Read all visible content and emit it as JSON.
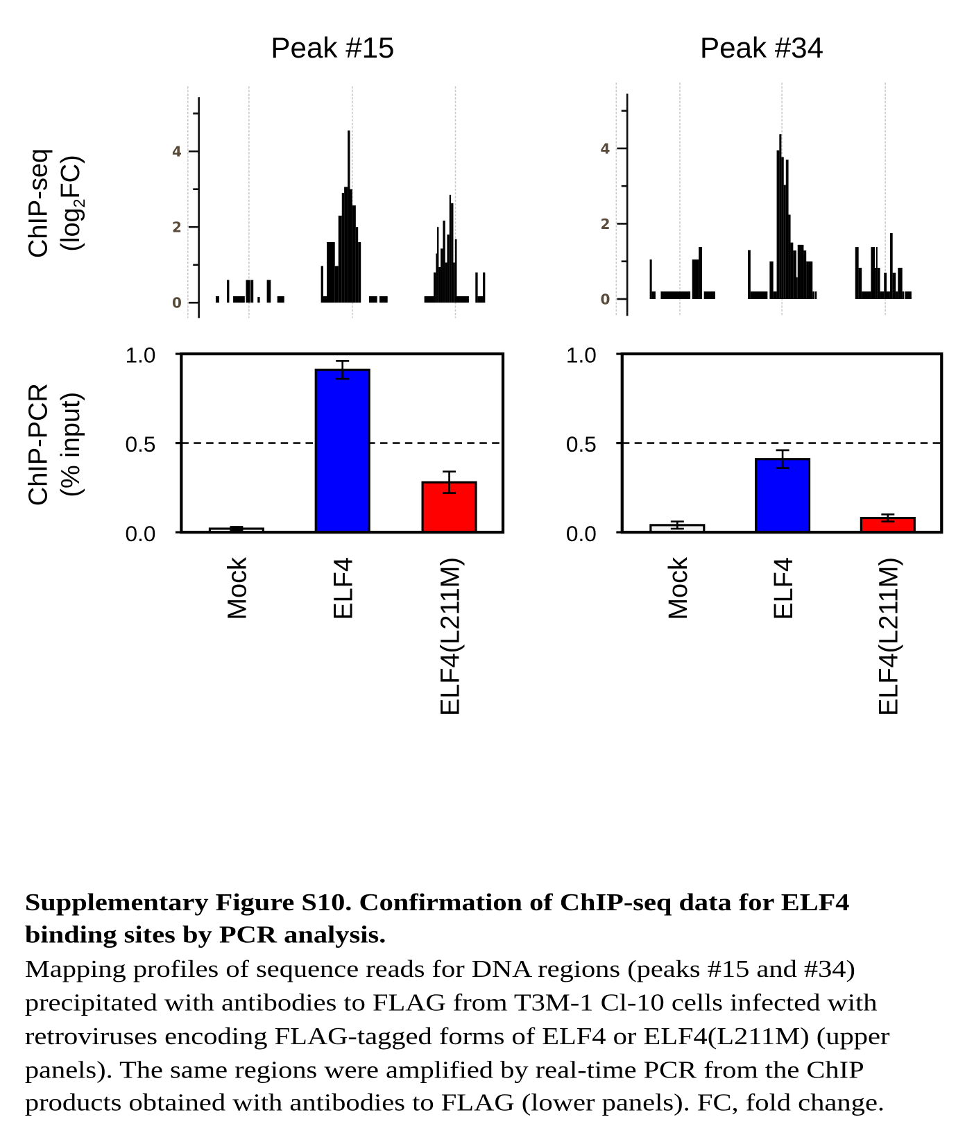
{
  "figure": {
    "panel_titles": [
      "Peak #15",
      "Peak #34"
    ],
    "ylabel_chipseq": [
      "ChIP-seq",
      "(log",
      "2",
      "FC)"
    ],
    "ylabel_chippcr": [
      "ChIP-PCR",
      "(% input)"
    ],
    "caption_title_lines": [
      "Supplementary Figure S10. Confirmation of ChIP-seq data for ELF4",
      "binding sites by PCR analysis."
    ],
    "caption_body_lines": [
      "Mapping profiles of sequence reads for DNA regions (peaks #15 and #34)",
      "precipitated with antibodies to FLAG from T3M-1 Cl-10 cells infected with",
      "retroviruses encoding FLAG-tagged forms of ELF4 or ELF4(L211M) (upper",
      "panels). The same regions were amplified by real-time PCR from the ChIP",
      "products obtained with antibodies to FLAG (lower panels). FC, fold change."
    ]
  },
  "chart_data": [
    {
      "type": "bar",
      "panel": "Peak #15",
      "title": "Peak #15",
      "ylabel": "ChIP-seq (log2FC)",
      "ylim": [
        0,
        5.4
      ],
      "yticks": [
        0,
        1,
        2,
        3,
        4,
        5
      ],
      "ytick_labels": [
        "0",
        "2",
        "4"
      ],
      "bar_color": "#000000",
      "marker_positions": [
        -12,
        14.3,
        58.8,
        103.2
      ],
      "segments": [
        [
          0,
          1.5,
          0.17
        ],
        [
          4.8,
          5.8,
          0.6
        ],
        [
          7.5,
          12.5,
          0.17
        ],
        [
          13,
          14.8,
          0.6
        ],
        [
          15,
          16.2,
          0.6
        ],
        [
          18,
          19,
          0.15
        ],
        [
          22,
          23.7,
          0.6
        ],
        [
          26.5,
          29.5,
          0.17
        ],
        [
          45.3,
          46.3,
          0.97
        ],
        [
          46.3,
          47.8,
          0.17
        ],
        [
          47.8,
          51.3,
          1.6
        ],
        [
          51.3,
          52.8,
          0.97
        ],
        [
          52.8,
          54.3,
          2.3
        ],
        [
          54.3,
          55.3,
          2.9
        ],
        [
          55.3,
          56.8,
          3.06
        ],
        [
          56.8,
          57.8,
          4.55
        ],
        [
          57.8,
          58.8,
          3.0
        ],
        [
          58.8,
          60.3,
          2.57
        ],
        [
          60.3,
          61.3,
          2.0
        ],
        [
          61.3,
          62.5,
          1.6
        ],
        [
          66,
          69.5,
          0.17
        ],
        [
          70.5,
          74,
          0.17
        ],
        [
          89.8,
          93.8,
          0.17
        ],
        [
          93.8,
          94.8,
          0.8
        ],
        [
          94.8,
          95.3,
          1.3
        ],
        [
          95.3,
          96,
          2.0
        ],
        [
          96,
          96.8,
          0.94
        ],
        [
          96.8,
          97.8,
          1.43
        ],
        [
          97.8,
          98.8,
          2.17
        ],
        [
          98.8,
          99.6,
          1.06
        ],
        [
          99.6,
          100.6,
          1.8
        ],
        [
          100.6,
          101.3,
          2.85
        ],
        [
          101.3,
          102.3,
          2.63
        ],
        [
          102.3,
          103,
          1.06
        ],
        [
          103,
          103.8,
          1.68
        ],
        [
          103.8,
          109,
          0.17
        ],
        [
          111.8,
          112.8,
          0.8
        ],
        [
          112.8,
          115,
          0.17
        ],
        [
          115,
          116,
          0.8
        ]
      ]
    },
    {
      "type": "bar",
      "panel": "Peak #34",
      "title": "Peak #34",
      "ylabel": "ChIP-seq (log2FC)",
      "ylim": [
        0,
        5.4
      ],
      "yticks": [
        0,
        1,
        2,
        3,
        4,
        5
      ],
      "ytick_labels": [
        "0",
        "2",
        "4"
      ],
      "bar_color": "#000000",
      "marker_positions": [
        -12.8,
        11.5,
        50.5,
        90
      ],
      "segments": [
        [
          0,
          0.8,
          1.05
        ],
        [
          0.8,
          2.2,
          0.2
        ],
        [
          4.2,
          15.5,
          0.2
        ],
        [
          16.2,
          18.7,
          1.05
        ],
        [
          18.7,
          20,
          1.38
        ],
        [
          20.7,
          25,
          0.2
        ],
        [
          37.5,
          38.5,
          1.3
        ],
        [
          38.5,
          45,
          0.2
        ],
        [
          45.8,
          47.2,
          1.0
        ],
        [
          47.2,
          48.5,
          0.2
        ],
        [
          48.5,
          49.5,
          3.95
        ],
        [
          49.5,
          50.3,
          4.38
        ],
        [
          50.3,
          51.2,
          3.77
        ],
        [
          51.2,
          52,
          3.03
        ],
        [
          52,
          53,
          3.7
        ],
        [
          53,
          53.8,
          2.24
        ],
        [
          53.8,
          54.8,
          1.5
        ],
        [
          54.8,
          56,
          1.29
        ],
        [
          56,
          56.5,
          0.58
        ],
        [
          56.5,
          57.5,
          1.44
        ],
        [
          57.5,
          58.8,
          1.44
        ],
        [
          58.8,
          59.8,
          1.29
        ],
        [
          59.8,
          60.8,
          1.0
        ],
        [
          60.8,
          62.2,
          1.0
        ],
        [
          62.2,
          63,
          0.2
        ],
        [
          63.2,
          63.8,
          0.2
        ],
        [
          78.5,
          79.8,
          1.38
        ],
        [
          79.8,
          81,
          0.83
        ],
        [
          81,
          84.5,
          0.2
        ],
        [
          84.5,
          86,
          1.38
        ],
        [
          86,
          86.5,
          0.83
        ],
        [
          86.5,
          87,
          1.38
        ],
        [
          87,
          88,
          0.83
        ],
        [
          88,
          89.5,
          0.2
        ],
        [
          89.5,
          90.5,
          0.7
        ],
        [
          90.5,
          91.8,
          0.2
        ],
        [
          91.8,
          92.8,
          1.75
        ],
        [
          92.8,
          94,
          0.7
        ],
        [
          94,
          94.8,
          0.2
        ],
        [
          94.8,
          96.5,
          0.83
        ],
        [
          96.5,
          97.2,
          0.2
        ],
        [
          97.5,
          100,
          0.2
        ]
      ]
    },
    {
      "type": "bar",
      "panel": "Peak #15",
      "ylabel": "ChIP-PCR (% input)",
      "ylim": [
        0,
        1.0
      ],
      "yticks": [
        0.0,
        0.5,
        1.0
      ],
      "ytick_labels": [
        "0.0",
        "0.5",
        "1.0"
      ],
      "reference_line": 0.5,
      "categories": [
        "Mock",
        "ELF4",
        "ELF4(L211M)"
      ],
      "values": [
        0.02,
        0.91,
        0.28
      ],
      "errors": [
        0.01,
        0.05,
        0.06
      ],
      "colors": [
        "#ffffff",
        "#0000ff",
        "#ff0000"
      ]
    },
    {
      "type": "bar",
      "panel": "Peak #34",
      "ylabel": "ChIP-PCR (% input)",
      "ylim": [
        0,
        1.0
      ],
      "yticks": [
        0.0,
        0.5,
        1.0
      ],
      "ytick_labels": [
        "0.0",
        "0.5",
        "1.0"
      ],
      "reference_line": 0.5,
      "categories": [
        "Mock",
        "ELF4",
        "ELF4(L211M)"
      ],
      "values": [
        0.04,
        0.41,
        0.08
      ],
      "errors": [
        0.02,
        0.05,
        0.02
      ],
      "colors": [
        "#f2f2f2",
        "#0000ff",
        "#ff0000"
      ]
    }
  ]
}
